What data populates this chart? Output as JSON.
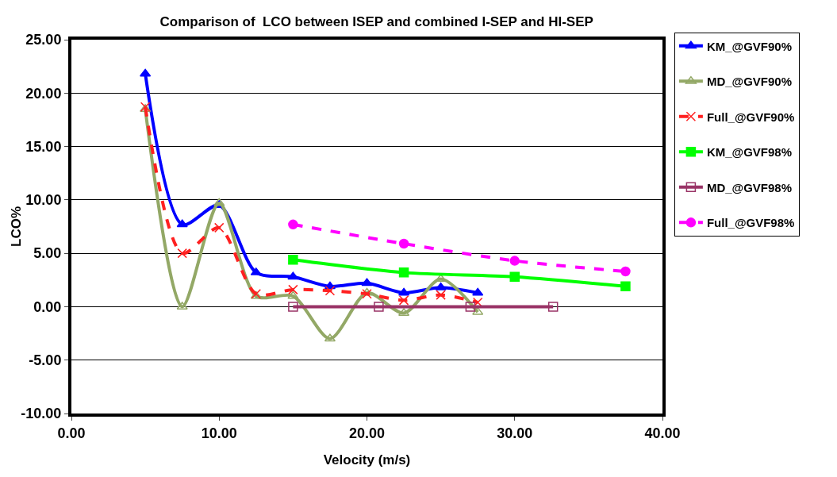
{
  "chart_data": {
    "type": "line",
    "title": "Comparison of  LCO between ISEP and combined I-SEP and HI-SEP",
    "xlabel": "Velocity (m/s)",
    "ylabel": "LCO%",
    "xlim": [
      0,
      40
    ],
    "xticks": [
      {
        "value": 0,
        "label": "0.00"
      },
      {
        "value": 10,
        "label": "10.00"
      },
      {
        "value": 20,
        "label": "20.00"
      },
      {
        "value": 30,
        "label": "30.00"
      },
      {
        "value": 40,
        "label": "40.00"
      }
    ],
    "ylim": [
      -10,
      25
    ],
    "yticks": [
      {
        "value": -10,
        "label": "-10.00"
      },
      {
        "value": -5,
        "label": "-5.00"
      },
      {
        "value": 0,
        "label": "0.00"
      },
      {
        "value": 5,
        "label": "5.00"
      },
      {
        "value": 10,
        "label": "10.00"
      },
      {
        "value": 15,
        "label": "15.00"
      },
      {
        "value": 20,
        "label": "20.00"
      },
      {
        "value": 25,
        "label": "25.00"
      }
    ],
    "grid": "y",
    "legend": "right",
    "series": [
      {
        "name": "KM_@GVF90%",
        "color": "#0000ff",
        "marker": "triangle",
        "line_style": "solid",
        "x": [
          5,
          7.5,
          10,
          12.5,
          15,
          17.5,
          20,
          22.5,
          25,
          27.5
        ],
        "values": [
          21.8,
          7.7,
          9.5,
          3.2,
          2.8,
          1.9,
          2.2,
          1.3,
          1.8,
          1.3
        ]
      },
      {
        "name": "MD_@GVF90%",
        "color": "#93a866",
        "marker": "triangle-open",
        "line_style": "solid",
        "x": [
          5,
          7.5,
          10,
          12.5,
          15,
          17.5,
          20,
          22.5,
          25,
          27.5
        ],
        "values": [
          18.5,
          0,
          9.7,
          1.0,
          1.0,
          -3.0,
          1.3,
          -0.6,
          2.6,
          -0.5
        ]
      },
      {
        "name": "Full_@GVF90%",
        "color": "#ff2020",
        "marker": "cross",
        "line_style": "dashed",
        "x": [
          5,
          7.5,
          10,
          12.5,
          15,
          17.5,
          20,
          22.5,
          25,
          27.5
        ],
        "values": [
          18.7,
          5.0,
          7.4,
          1.2,
          1.6,
          1.5,
          1.2,
          0.6,
          1.1,
          0.4
        ]
      },
      {
        "name": "KM_@GVF98%",
        "color": "#00ff00",
        "marker": "square",
        "line_style": "solid",
        "x": [
          15,
          22.5,
          30,
          37.5
        ],
        "values": [
          4.4,
          3.2,
          2.8,
          1.9
        ]
      },
      {
        "name": "MD_@GVF98%",
        "color": "#993366",
        "marker": "square-open",
        "line_style": "solid",
        "x": [
          15,
          20.8,
          27,
          32.6
        ],
        "values": [
          0,
          0,
          0,
          0
        ]
      },
      {
        "name": "Full_@GVF98%",
        "color": "#ff00ff",
        "marker": "circle",
        "line_style": "dashed",
        "x": [
          15,
          22.5,
          30,
          37.5
        ],
        "values": [
          7.7,
          5.9,
          4.3,
          3.3
        ]
      }
    ]
  }
}
